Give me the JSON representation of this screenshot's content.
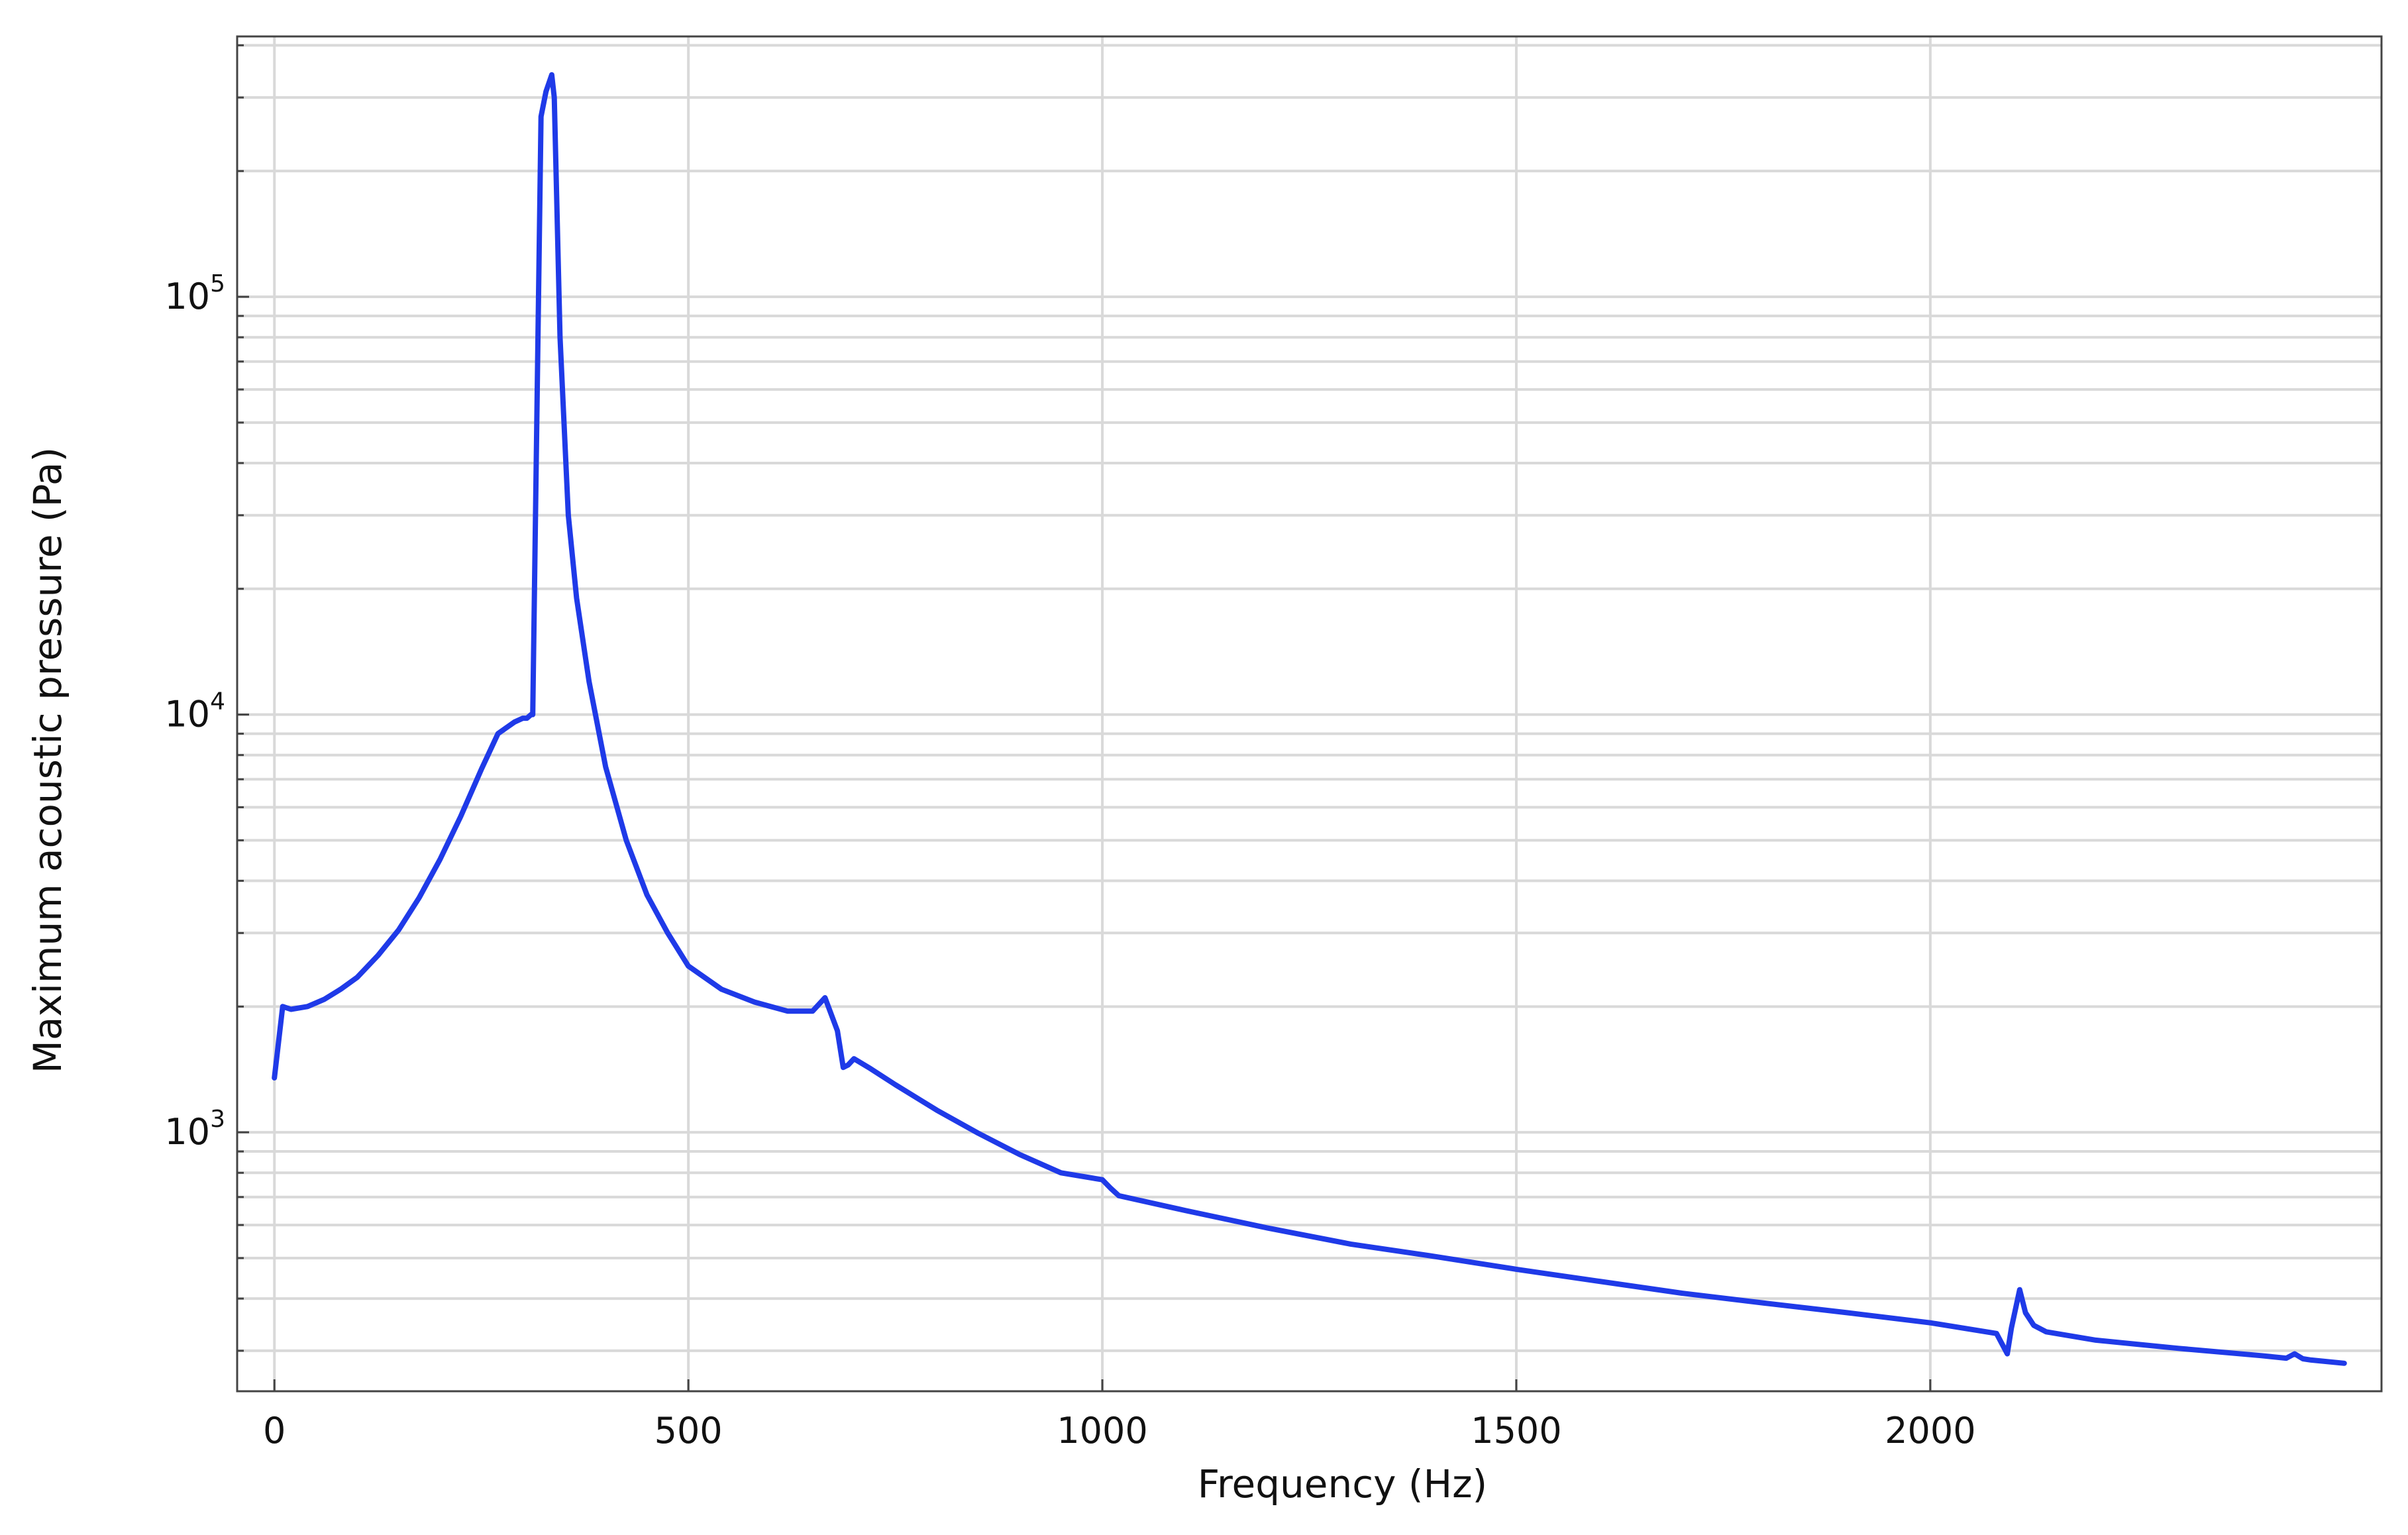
{
  "chart_data": {
    "type": "line",
    "title": "",
    "xlabel": "Frequency (Hz)",
    "ylabel": "Maximum acoustic pressure (Pa)",
    "xlim": [
      -45,
      2545
    ],
    "ylim": [
      240,
      420000
    ],
    "yscale": "log",
    "grid": true,
    "legend": "none",
    "line_color": "#1f3ae8",
    "grid_color": "#d9d9d9",
    "x_ticks": [
      {
        "value": 0,
        "label": "0"
      },
      {
        "value": 500,
        "label": "500"
      },
      {
        "value": 1000,
        "label": "1000"
      },
      {
        "value": 1500,
        "label": "1500"
      },
      {
        "value": 2000,
        "label": "2000"
      }
    ],
    "y_ticks": [
      {
        "value": 1000,
        "base": "10",
        "exp": "3"
      },
      {
        "value": 10000,
        "base": "10",
        "exp": "4"
      },
      {
        "value": 100000,
        "base": "10",
        "exp": "5"
      }
    ],
    "series": [
      {
        "x": [
          0,
          10,
          20,
          40,
          60,
          80,
          100,
          125,
          150,
          175,
          200,
          225,
          250,
          270,
          290,
          300,
          305,
          310,
          312,
          322,
          328,
          335,
          338,
          345,
          355,
          365,
          380,
          400,
          425,
          450,
          475,
          500,
          540,
          580,
          620,
          650,
          665,
          680,
          687,
          693,
          700,
          720,
          750,
          800,
          850,
          900,
          950,
          1000,
          1010,
          1020,
          1100,
          1200,
          1300,
          1400,
          1500,
          1600,
          1700,
          1800,
          1900,
          2000,
          2080,
          2093,
          2098,
          2108,
          2115,
          2125,
          2140,
          2200,
          2300,
          2400,
          2430,
          2440,
          2450,
          2460,
          2500
        ],
        "y": [
          1350,
          2000,
          1970,
          2000,
          2080,
          2200,
          2350,
          2650,
          3050,
          3650,
          4500,
          5700,
          7400,
          9000,
          9600,
          9800,
          9800,
          10000,
          10000,
          270000,
          310000,
          340000,
          300000,
          80000,
          30000,
          19000,
          12000,
          7500,
          5000,
          3700,
          3000,
          2500,
          2200,
          2050,
          1950,
          1950,
          2100,
          1750,
          1430,
          1450,
          1500,
          1420,
          1300,
          1130,
          995,
          885,
          800,
          770,
          735,
          705,
          650,
          590,
          540,
          505,
          470,
          440,
          412,
          390,
          370,
          350,
          330,
          295,
          340,
          420,
          370,
          345,
          333,
          318,
          304,
          292,
          288,
          295,
          287,
          285,
          280
        ]
      }
    ]
  }
}
